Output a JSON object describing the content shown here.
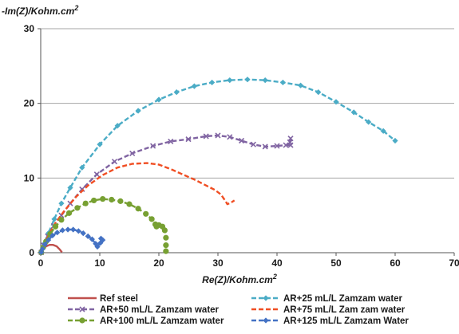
{
  "chart_data": {
    "type": "scatter",
    "xlabel": "Re(Z)/Kohm.cm",
    "xlabel_sup": "2",
    "ylabel": "-Im(Z)/Kohm.cm",
    "ylabel_sup": "2",
    "xlim": [
      0,
      70
    ],
    "ylim": [
      0,
      30
    ],
    "x_ticks": [
      0,
      10,
      20,
      30,
      40,
      50,
      60,
      70
    ],
    "y_ticks": [
      0,
      10,
      20,
      30
    ],
    "grid": "horizontal",
    "legend_position": "bottom",
    "series": [
      {
        "name": "Ref steel",
        "color": "#c0504d",
        "dash": "solid",
        "marker": "none",
        "points": [
          [
            0.15,
            0.05
          ],
          [
            0.4,
            0.5
          ],
          [
            0.9,
            0.85
          ],
          [
            1.5,
            1.05
          ],
          [
            2.1,
            1.05
          ],
          [
            2.7,
            0.85
          ],
          [
            3.2,
            0.45
          ],
          [
            3.6,
            0.05
          ]
        ]
      },
      {
        "name": "AR+25 mL/L Zamzam water",
        "color": "#4bacc6",
        "dash": "dashed",
        "marker": "diamond",
        "points": [
          [
            0.1,
            0.05
          ],
          [
            0.6,
            1.2
          ],
          [
            1.3,
            2.6
          ],
          [
            2.3,
            4.5
          ],
          [
            3.5,
            6.6
          ],
          [
            5.0,
            8.7
          ],
          [
            7.0,
            11.4
          ],
          [
            10.0,
            14.5
          ],
          [
            13.0,
            17.0
          ],
          [
            16.5,
            19.0
          ],
          [
            20.0,
            20.5
          ],
          [
            23.0,
            21.5
          ],
          [
            26.0,
            22.3
          ],
          [
            29.0,
            22.8
          ],
          [
            32.0,
            23.1
          ],
          [
            35.0,
            23.2
          ],
          [
            38.0,
            23.1
          ],
          [
            41.0,
            22.8
          ],
          [
            44.0,
            22.4
          ],
          [
            47.0,
            21.5
          ],
          [
            50.0,
            20.2
          ],
          [
            53.0,
            18.8
          ],
          [
            55.5,
            17.5
          ],
          [
            58.0,
            16.3
          ],
          [
            60.0,
            15.0
          ]
        ]
      },
      {
        "name": "AR+50 mL/L Zamzam water",
        "color": "#8064a2",
        "dash": "dashed",
        "marker": "x",
        "points": [
          [
            0.1,
            0.05
          ],
          [
            0.5,
            1.0
          ],
          [
            1.2,
            2.2
          ],
          [
            2.2,
            3.6
          ],
          [
            3.5,
            5.0
          ],
          [
            5.0,
            6.6
          ],
          [
            7.0,
            8.5
          ],
          [
            9.5,
            10.5
          ],
          [
            12.5,
            12.2
          ],
          [
            15.5,
            13.3
          ],
          [
            19.0,
            14.3
          ],
          [
            22.0,
            14.9
          ],
          [
            25.0,
            15.2
          ],
          [
            28.0,
            15.6
          ],
          [
            30.0,
            15.7
          ],
          [
            32.0,
            15.5
          ],
          [
            34.0,
            15.0
          ],
          [
            36.0,
            14.5
          ],
          [
            38.0,
            14.2
          ],
          [
            40.0,
            14.3
          ],
          [
            41.5,
            14.4
          ],
          [
            42.3,
            14.4
          ],
          [
            42.2,
            14.8
          ],
          [
            42.3,
            15.3
          ]
        ]
      },
      {
        "name": "AR+75 mL/L Zam zam water",
        "color": "#f04e23",
        "dash": "dashed",
        "marker": "none",
        "points": [
          [
            0.1,
            0.05
          ],
          [
            0.6,
            1.2
          ],
          [
            1.5,
            2.6
          ],
          [
            2.5,
            4.0
          ],
          [
            4.0,
            5.6
          ],
          [
            6.0,
            7.5
          ],
          [
            8.0,
            9.0
          ],
          [
            10.5,
            10.4
          ],
          [
            13.0,
            11.4
          ],
          [
            15.5,
            11.9
          ],
          [
            18.0,
            12.0
          ],
          [
            20.0,
            11.8
          ],
          [
            22.0,
            11.2
          ],
          [
            24.0,
            10.5
          ],
          [
            26.0,
            9.8
          ],
          [
            28.0,
            9.0
          ],
          [
            29.5,
            8.4
          ],
          [
            30.5,
            7.8
          ],
          [
            31.2,
            7.0
          ],
          [
            31.6,
            6.5
          ],
          [
            32.2,
            6.7
          ],
          [
            32.8,
            7.0
          ]
        ]
      },
      {
        "name": "AR+100 mL/L Zamzam water",
        "color": "#77a032",
        "dash": "dashed",
        "marker": "circle",
        "points": [
          [
            0.1,
            0.05
          ],
          [
            0.4,
            0.7
          ],
          [
            0.9,
            1.5
          ],
          [
            1.6,
            2.5
          ],
          [
            2.5,
            3.5
          ],
          [
            3.5,
            4.4
          ],
          [
            4.8,
            5.3
          ],
          [
            6.2,
            6.0
          ],
          [
            7.6,
            6.6
          ],
          [
            9.0,
            7.0
          ],
          [
            10.5,
            7.2
          ],
          [
            12.0,
            7.1
          ],
          [
            13.5,
            6.9
          ],
          [
            15.0,
            6.5
          ],
          [
            16.5,
            5.9
          ],
          [
            17.8,
            5.2
          ],
          [
            18.8,
            4.5
          ],
          [
            19.4,
            3.8
          ],
          [
            19.6,
            3.5
          ],
          [
            20.0,
            3.7
          ],
          [
            20.6,
            3.5
          ],
          [
            21.0,
            3.0
          ],
          [
            21.2,
            2.0
          ],
          [
            21.2,
            1.0
          ],
          [
            21.2,
            0.2
          ]
        ]
      },
      {
        "name": "AR+125 mL/L Zamzam Water",
        "color": "#4472c4",
        "dash": "dashed",
        "marker": "diamond",
        "points": [
          [
            0.1,
            0.05
          ],
          [
            0.3,
            0.5
          ],
          [
            0.7,
            1.1
          ],
          [
            1.3,
            1.7
          ],
          [
            2.0,
            2.3
          ],
          [
            2.8,
            2.7
          ],
          [
            3.7,
            3.0
          ],
          [
            4.6,
            3.1
          ],
          [
            5.5,
            3.1
          ],
          [
            6.4,
            2.9
          ],
          [
            7.2,
            2.6
          ],
          [
            8.0,
            2.2
          ],
          [
            8.7,
            1.8
          ],
          [
            9.3,
            1.2
          ],
          [
            9.6,
            0.8
          ],
          [
            10.1,
            1.3
          ],
          [
            10.5,
            1.7
          ],
          [
            10.2,
            1.9
          ]
        ]
      }
    ]
  }
}
